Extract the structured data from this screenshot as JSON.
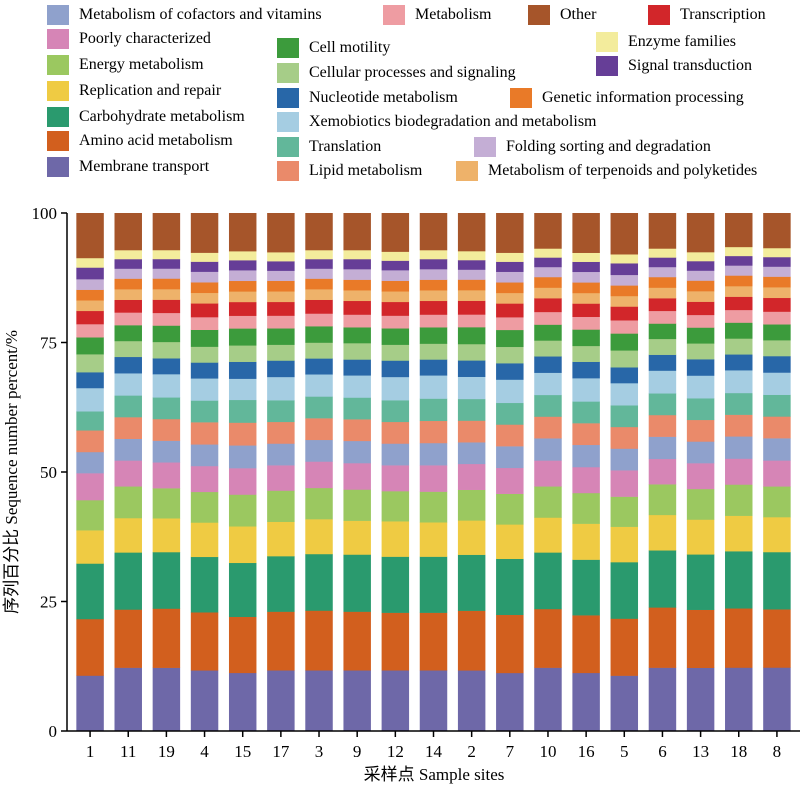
{
  "chart_data": {
    "type": "bar",
    "stacked": true,
    "ylabel": "序列百分比 Sequence number percent/%",
    "xlabel": "采样点 Sample sites",
    "ylim": [
      0,
      100
    ],
    "yticks": [
      "0",
      "25",
      "50",
      "75",
      "100"
    ],
    "categories": [
      "1",
      "11",
      "19",
      "4",
      "15",
      "17",
      "3",
      "9",
      "12",
      "14",
      "2",
      "7",
      "10",
      "16",
      "5",
      "6",
      "13",
      "18",
      "8"
    ],
    "series": [
      {
        "name": "Membrane transport",
        "color": "#6e68a8",
        "values": [
          10.5,
          12,
          12,
          11.5,
          11,
          11.5,
          11.5,
          11.5,
          11.5,
          11.5,
          11.5,
          11,
          12,
          11,
          10.5,
          12,
          12,
          12,
          12
        ]
      },
      {
        "name": "Amino acid metabolism",
        "color": "#d25f1e",
        "values": [
          10.7,
          11,
          11.2,
          11,
          10.6,
          11.1,
          11.3,
          11.1,
          10.9,
          10.9,
          11.3,
          11,
          11.1,
          10.9,
          10.8,
          11.4,
          11,
          11.2,
          11
        ]
      },
      {
        "name": "Carbohydrate metabolism",
        "color": "#2a9a6e",
        "values": [
          10.5,
          10.8,
          10.7,
          10.5,
          10.2,
          10.5,
          10.7,
          10.8,
          10.6,
          10.6,
          10.6,
          10.6,
          10.7,
          10.5,
          10.7,
          10.8,
          10.5,
          10.8,
          10.8
        ]
      },
      {
        "name": "Replication and repair",
        "color": "#efcb43",
        "values": [
          6.3,
          6.5,
          6.4,
          6.5,
          6.9,
          6.5,
          6.6,
          6.4,
          6.7,
          6.5,
          6.5,
          6.5,
          6.6,
          6.8,
          6.7,
          6.7,
          6.6,
          6.7,
          6.6
        ]
      },
      {
        "name": "Energy metabolism",
        "color": "#9bc860",
        "values": [
          5.7,
          6,
          5.7,
          5.8,
          6,
          5.9,
          5.9,
          5.9,
          5.7,
          5.8,
          5.8,
          5.8,
          5.9,
          5.8,
          5.7,
          5.8,
          5.8,
          5.9,
          5.8
        ]
      },
      {
        "name": "Poorly characterized",
        "color": "#d685b6",
        "values": [
          5.1,
          4.9,
          4.9,
          4.9,
          5,
          4.8,
          5,
          5,
          4.9,
          5,
          4.9,
          4.9,
          4.9,
          4.9,
          5,
          4.8,
          4.9,
          4.9,
          4.9
        ]
      },
      {
        "name": "Metabolism of cofactors and vitamins",
        "color": "#8fa1cc",
        "values": [
          4,
          4.1,
          4.1,
          4.1,
          4.3,
          4.1,
          4.1,
          4.2,
          4.1,
          4.2,
          4.1,
          4.1,
          4.2,
          4.2,
          4.1,
          4.2,
          4.1,
          4.2,
          4.2
        ]
      },
      {
        "name": "Lipid metabolism",
        "color": "#ea8a6a",
        "values": [
          4.1,
          4.1,
          4.1,
          4.2,
          4.3,
          4.1,
          4.1,
          4.1,
          4.1,
          4.2,
          4.1,
          4.1,
          4.1,
          4.1,
          4.1,
          4.1,
          4.1,
          4.1,
          4.1
        ]
      },
      {
        "name": "Translation",
        "color": "#62b79a",
        "values": [
          3.6,
          4.1,
          4.1,
          4.1,
          4.3,
          4.1,
          4.1,
          4.1,
          4.1,
          4.2,
          4.1,
          4.1,
          4.1,
          4.1,
          4.1,
          4.1,
          4.1,
          4.1,
          4.1
        ]
      },
      {
        "name": "Xemobiotics biodegradation and metabolism",
        "color": "#a5cde2",
        "values": [
          4.4,
          4.2,
          4.4,
          4.2,
          4,
          4.4,
          4.2,
          4.2,
          4.4,
          4.4,
          4.2,
          4.4,
          4.2,
          4.4,
          4.2,
          4.3,
          4.3,
          4.3,
          4.2
        ]
      },
      {
        "name": "Nucleotide metabolism",
        "color": "#2867a8",
        "values": [
          3,
          3.1,
          3,
          3,
          3.2,
          3.1,
          3,
          3,
          3.1,
          3,
          3.1,
          3.1,
          3.1,
          3.1,
          3,
          3,
          3.1,
          3,
          3.1
        ]
      },
      {
        "name": "Cellular processes and signaling",
        "color": "#a6cd88",
        "values": [
          3.4,
          3,
          3.1,
          3,
          3.1,
          3,
          3,
          3.1,
          3,
          3,
          3.1,
          3.1,
          3,
          3,
          3.2,
          3,
          3,
          3,
          3
        ]
      },
      {
        "name": "Cell motility",
        "color": "#3c9b3c",
        "values": [
          3.2,
          3,
          3.1,
          3.2,
          3.2,
          3.1,
          3.1,
          3,
          3.1,
          3.1,
          3.2,
          3.2,
          3,
          3.1,
          3.2,
          2.9,
          3,
          3,
          3
        ]
      },
      {
        "name": "Metabolism",
        "color": "#ee9ca2",
        "values": [
          2.5,
          2.4,
          2.4,
          2.4,
          2.4,
          2.4,
          2.4,
          2.4,
          2.4,
          2.4,
          2.4,
          2.4,
          2.4,
          2.4,
          2.5,
          2.4,
          2.4,
          2.4,
          2.4
        ]
      },
      {
        "name": "Transcription",
        "color": "#d2262a",
        "values": [
          2.5,
          2.4,
          2.5,
          2.6,
          2.6,
          2.6,
          2.6,
          2.6,
          2.6,
          2.6,
          2.6,
          2.6,
          2.6,
          2.5,
          2.6,
          2.4,
          2.5,
          2.5,
          2.6
        ]
      },
      {
        "name": "Metabolism of terpenoids and polyketides",
        "color": "#eeb26a",
        "values": [
          2,
          2,
          2,
          2,
          2,
          2,
          2,
          2,
          2,
          2,
          2,
          2,
          2,
          2,
          2,
          2,
          2,
          2,
          2
        ]
      },
      {
        "name": "Genetic information processing",
        "color": "#e97a28",
        "values": [
          2,
          2,
          2,
          2,
          2,
          2,
          2,
          2,
          2,
          2,
          2,
          2,
          2,
          2,
          2,
          2,
          2,
          2,
          2
        ]
      },
      {
        "name": "Folding sorting and degradation",
        "color": "#c4aed5",
        "values": [
          2,
          1.9,
          1.9,
          2,
          2,
          1.9,
          1.9,
          2,
          2,
          2,
          1.9,
          2,
          1.9,
          2,
          2,
          1.9,
          1.9,
          1.9,
          1.9
        ]
      },
      {
        "name": "Signal transduction",
        "color": "#663e97",
        "values": [
          2.2,
          1.8,
          1.8,
          1.9,
          1.9,
          1.8,
          1.8,
          1.9,
          1.8,
          1.9,
          1.8,
          1.9,
          1.8,
          1.9,
          2.2,
          1.8,
          1.8,
          1.8,
          1.8
        ]
      },
      {
        "name": "Enzyme families",
        "color": "#f3ec9c",
        "values": [
          1.8,
          1.7,
          1.7,
          1.7,
          1.7,
          1.7,
          1.7,
          1.7,
          1.7,
          1.7,
          1.7,
          1.7,
          1.7,
          1.7,
          1.7,
          1.7,
          1.7,
          1.7,
          1.7
        ]
      },
      {
        "name": "Other",
        "color": "#a6552a",
        "values": [
          8.5,
          7,
          7,
          7.5,
          7.2,
          7.4,
          7,
          7,
          7.3,
          7,
          7.2,
          7.5,
          6.7,
          7.5,
          7.8,
          6.7,
          7.4,
          6.4,
          6.6
        ]
      }
    ]
  }
}
